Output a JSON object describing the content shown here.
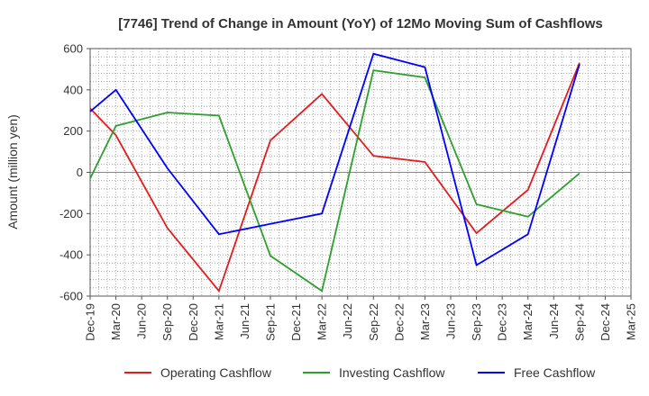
{
  "chart_data": {
    "type": "line",
    "title": "[7746]  Trend of Change in Amount (YoY) of 12Mo Moving Sum of Cashflows",
    "xlabel": "",
    "ylabel": "Amount (million yen)",
    "ylim": [
      -600,
      600
    ],
    "yticks": [
      600,
      400,
      200,
      0,
      -200,
      -400,
      -600
    ],
    "grid": true,
    "legend_position": "bottom",
    "categories": [
      "Dec-19",
      "Mar-20",
      "Jun-20",
      "Sep-20",
      "Dec-20",
      "Mar-21",
      "Jun-21",
      "Sep-21",
      "Dec-21",
      "Mar-22",
      "Jun-22",
      "Sep-22",
      "Dec-22",
      "Mar-23",
      "Jun-23",
      "Sep-23",
      "Dec-23",
      "Mar-24",
      "Jun-24",
      "Sep-24",
      "Dec-24",
      "Mar-25"
    ],
    "series": [
      {
        "name": "Operating Cashflow",
        "color": "#e41a1c",
        "values": [
          310,
          180,
          null,
          -270,
          null,
          -575,
          null,
          155,
          null,
          380,
          null,
          80,
          null,
          50,
          null,
          -295,
          null,
          -85,
          null,
          530,
          null,
          null
        ]
      },
      {
        "name": "Investing Cashflow",
        "color": "#2ca02c",
        "values": [
          -30,
          225,
          null,
          290,
          null,
          275,
          null,
          -405,
          null,
          -575,
          null,
          495,
          null,
          460,
          null,
          -155,
          null,
          -215,
          null,
          -5,
          null,
          null
        ]
      },
      {
        "name": "Free Cashflow",
        "color": "#0000ff",
        "values": [
          295,
          400,
          null,
          20,
          null,
          -300,
          null,
          -250,
          null,
          -200,
          null,
          575,
          null,
          510,
          null,
          -450,
          null,
          -300,
          null,
          525,
          null,
          null
        ]
      }
    ]
  }
}
